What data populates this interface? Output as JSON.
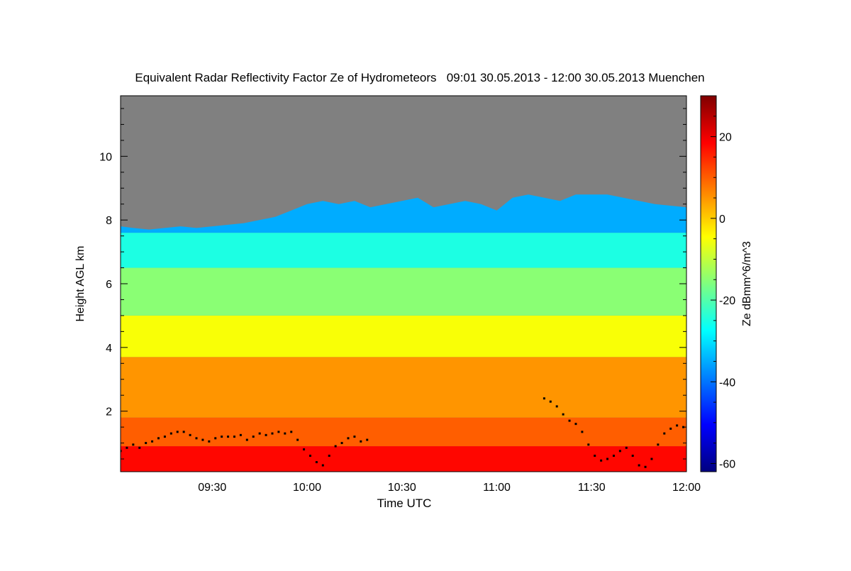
{
  "chart_data": {
    "type": "heatmap",
    "title": "Equivalent Radar Reflectivity Factor Ze of Hydrometeors   09:01 30.05.2013 - 12:00 30.05.2013 Muenchen",
    "xlabel": "Time UTC",
    "ylabel": "Height AGL km",
    "colorbar_label": "Ze dBmm^6/m^3",
    "x_range_minutes": [
      541,
      720
    ],
    "y_range_km": [
      0.1,
      11.9
    ],
    "x_ticks": [
      {
        "minute": 570,
        "label": "09:30"
      },
      {
        "minute": 600,
        "label": "10:00"
      },
      {
        "minute": 630,
        "label": "10:30"
      },
      {
        "minute": 660,
        "label": "11:00"
      },
      {
        "minute": 690,
        "label": "11:30"
      },
      {
        "minute": 720,
        "label": "12:00"
      }
    ],
    "y_ticks": [
      {
        "value": 2,
        "label": "2"
      },
      {
        "value": 4,
        "label": "4"
      },
      {
        "value": 6,
        "label": "6"
      },
      {
        "value": 8,
        "label": "8"
      },
      {
        "value": 10,
        "label": "10"
      }
    ],
    "colorbar_range": [
      -62,
      30
    ],
    "colorbar_ticks": [
      {
        "value": 20,
        "label": "20"
      },
      {
        "value": 0,
        "label": "0"
      },
      {
        "value": -20,
        "label": "-20"
      },
      {
        "value": -40,
        "label": "-40"
      },
      {
        "value": -60,
        "label": "-60"
      }
    ],
    "no_signal_color": "#808080",
    "colormap": [
      "#00007f",
      "#0000ff",
      "#007fff",
      "#00ffff",
      "#7fff7f",
      "#ffff00",
      "#ff7f00",
      "#ff0000",
      "#7f0000"
    ],
    "echo_top_km": [
      [
        541,
        7.8
      ],
      [
        545,
        7.75
      ],
      [
        550,
        7.7
      ],
      [
        555,
        7.75
      ],
      [
        560,
        7.8
      ],
      [
        565,
        7.75
      ],
      [
        570,
        7.8
      ],
      [
        575,
        7.85
      ],
      [
        580,
        7.9
      ],
      [
        585,
        8.0
      ],
      [
        590,
        8.1
      ],
      [
        595,
        8.3
      ],
      [
        600,
        8.5
      ],
      [
        605,
        8.6
      ],
      [
        610,
        8.5
      ],
      [
        615,
        8.6
      ],
      [
        620,
        8.4
      ],
      [
        625,
        8.5
      ],
      [
        630,
        8.6
      ],
      [
        635,
        8.7
      ],
      [
        640,
        8.4
      ],
      [
        645,
        8.5
      ],
      [
        650,
        8.6
      ],
      [
        655,
        8.5
      ],
      [
        660,
        8.3
      ],
      [
        665,
        8.7
      ],
      [
        670,
        8.8
      ],
      [
        675,
        8.7
      ],
      [
        680,
        8.6
      ],
      [
        685,
        8.8
      ],
      [
        690,
        8.8
      ],
      [
        695,
        8.8
      ],
      [
        700,
        8.7
      ],
      [
        705,
        8.6
      ],
      [
        710,
        8.5
      ],
      [
        715,
        8.45
      ],
      [
        720,
        8.4
      ]
    ],
    "layer_dbz": [
      {
        "top_km": 0.9,
        "value": 18
      },
      {
        "top_km": 1.8,
        "value": 10
      },
      {
        "top_km": 3.7,
        "value": 5
      },
      {
        "top_km": 5.0,
        "value": -5
      },
      {
        "top_km": 6.5,
        "value": -15
      },
      {
        "top_km": 7.6,
        "value": -25
      },
      {
        "top_km": 8.9,
        "value": -35
      }
    ],
    "marker_points_km": [
      [
        541,
        0.75
      ],
      [
        543,
        0.85
      ],
      [
        545,
        0.95
      ],
      [
        547,
        0.85
      ],
      [
        549,
        1.0
      ],
      [
        551,
        1.05
      ],
      [
        553,
        1.15
      ],
      [
        555,
        1.2
      ],
      [
        557,
        1.3
      ],
      [
        559,
        1.35
      ],
      [
        561,
        1.35
      ],
      [
        563,
        1.25
      ],
      [
        565,
        1.15
      ],
      [
        567,
        1.1
      ],
      [
        569,
        1.05
      ],
      [
        571,
        1.15
      ],
      [
        573,
        1.2
      ],
      [
        575,
        1.2
      ],
      [
        577,
        1.2
      ],
      [
        579,
        1.25
      ],
      [
        581,
        1.1
      ],
      [
        583,
        1.2
      ],
      [
        585,
        1.3
      ],
      [
        587,
        1.25
      ],
      [
        589,
        1.3
      ],
      [
        591,
        1.35
      ],
      [
        593,
        1.3
      ],
      [
        595,
        1.35
      ],
      [
        597,
        1.1
      ],
      [
        599,
        0.8
      ],
      [
        601,
        0.6
      ],
      [
        603,
        0.4
      ],
      [
        605,
        0.3
      ],
      [
        607,
        0.6
      ],
      [
        609,
        0.9
      ],
      [
        611,
        1.0
      ],
      [
        613,
        1.15
      ],
      [
        615,
        1.2
      ],
      [
        617,
        1.05
      ],
      [
        619,
        1.1
      ],
      [
        675,
        2.4
      ],
      [
        677,
        2.3
      ],
      [
        679,
        2.15
      ],
      [
        681,
        1.9
      ],
      [
        683,
        1.7
      ],
      [
        685,
        1.6
      ],
      [
        687,
        1.35
      ],
      [
        689,
        0.95
      ],
      [
        691,
        0.6
      ],
      [
        693,
        0.45
      ],
      [
        695,
        0.5
      ],
      [
        697,
        0.6
      ],
      [
        699,
        0.75
      ],
      [
        701,
        0.85
      ],
      [
        703,
        0.6
      ],
      [
        705,
        0.3
      ],
      [
        707,
        0.25
      ],
      [
        709,
        0.5
      ],
      [
        711,
        0.95
      ],
      [
        713,
        1.3
      ],
      [
        715,
        1.45
      ],
      [
        717,
        1.55
      ],
      [
        719,
        1.5
      ]
    ]
  }
}
